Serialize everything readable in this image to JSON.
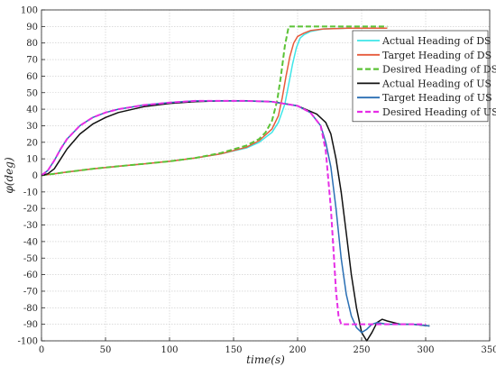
{
  "chart_data": {
    "type": "line",
    "xlabel": "time(s)",
    "ylabel": "φ(deg)",
    "xlim": [
      0,
      350
    ],
    "ylim": [
      -100,
      100
    ],
    "xticks": [
      0,
      50,
      100,
      150,
      200,
      250,
      300,
      350
    ],
    "yticks": [
      -100,
      -90,
      -80,
      -70,
      -60,
      -50,
      -40,
      -30,
      -20,
      -10,
      0,
      10,
      20,
      30,
      40,
      50,
      60,
      70,
      80,
      90,
      100
    ],
    "grid": true,
    "legend_position": "top-right",
    "series": [
      {
        "name": "Actual Heading of DS",
        "color": "#3EE6E8",
        "dash": "solid",
        "x": [
          0,
          10,
          20,
          40,
          60,
          80,
          100,
          120,
          140,
          160,
          170,
          180,
          185,
          190,
          193,
          196,
          199,
          202,
          205,
          210,
          220,
          240,
          260,
          270
        ],
        "y": [
          0,
          1,
          2,
          4,
          5.5,
          7,
          8.5,
          10.5,
          13,
          16.5,
          20,
          26,
          32,
          43,
          55,
          67,
          77,
          83,
          85,
          87,
          88.5,
          89,
          89,
          89
        ]
      },
      {
        "name": "Target Heading of DS",
        "color": "#E65A3C",
        "dash": "solid",
        "x": [
          0,
          10,
          20,
          40,
          60,
          80,
          100,
          120,
          140,
          160,
          170,
          180,
          185,
          188,
          191,
          194,
          197,
          200,
          205,
          210,
          220,
          240,
          260,
          270
        ],
        "y": [
          0,
          1,
          2,
          4,
          5.5,
          7,
          8.5,
          10.5,
          13,
          17,
          21,
          28,
          36,
          47,
          60,
          72,
          80,
          84,
          86,
          87.5,
          88.5,
          89,
          89,
          89
        ]
      },
      {
        "name": "Desired Heading of DS",
        "color": "#5BC236",
        "dash": "dashed",
        "x": [
          0,
          10,
          20,
          40,
          60,
          80,
          100,
          120,
          140,
          160,
          170,
          175,
          180,
          184,
          187,
          190,
          193,
          196,
          210,
          230,
          250,
          270
        ],
        "y": [
          0,
          1,
          2,
          4,
          5.5,
          7,
          8.5,
          10.5,
          13.5,
          18,
          22,
          26,
          33,
          45,
          60,
          78,
          90,
          90,
          90,
          90,
          90,
          90
        ]
      },
      {
        "name": "Actual Heading of US",
        "color": "#111111",
        "dash": "solid",
        "x": [
          0,
          5,
          10,
          15,
          20,
          30,
          40,
          50,
          60,
          80,
          100,
          120,
          140,
          160,
          180,
          200,
          215,
          222,
          226,
          230,
          234,
          238,
          242,
          246,
          250,
          254,
          258,
          262,
          266,
          270,
          280,
          290,
          303
        ],
        "y": [
          0,
          1,
          4,
          10,
          16,
          25,
          31,
          35,
          38,
          41.5,
          43.5,
          44.5,
          45,
          45,
          44.5,
          42,
          37,
          32,
          25,
          10,
          -10,
          -35,
          -60,
          -80,
          -95,
          -100,
          -95,
          -89,
          -87,
          -88,
          -90,
          -90,
          -91
        ]
      },
      {
        "name": "Target Heading of US",
        "color": "#2A6FB4",
        "dash": "solid",
        "x": [
          0,
          5,
          10,
          15,
          20,
          30,
          40,
          50,
          60,
          80,
          100,
          120,
          140,
          160,
          180,
          200,
          210,
          218,
          222,
          226,
          230,
          234,
          238,
          242,
          246,
          250,
          254,
          258,
          262,
          270,
          280,
          290,
          303
        ],
        "y": [
          0,
          3,
          9,
          16,
          22,
          30,
          35,
          38,
          40,
          42.5,
          44,
          45,
          45,
          45,
          44.5,
          42,
          38,
          30,
          20,
          5,
          -20,
          -50,
          -72,
          -85,
          -92,
          -95,
          -93,
          -90,
          -89,
          -90,
          -90,
          -90,
          -91
        ]
      },
      {
        "name": "Desired Heading of US",
        "color": "#E62EE6",
        "dash": "dashed",
        "x": [
          0,
          5,
          10,
          15,
          20,
          30,
          40,
          50,
          60,
          80,
          100,
          120,
          140,
          160,
          180,
          200,
          210,
          218,
          222,
          226,
          228,
          230,
          232,
          234,
          236,
          240,
          250,
          260,
          270,
          280,
          290,
          300
        ],
        "y": [
          0,
          3,
          9,
          16,
          22,
          30,
          35,
          38,
          40,
          42.5,
          44,
          45,
          45,
          45,
          44.5,
          42,
          38,
          30,
          15,
          -20,
          -45,
          -70,
          -85,
          -90,
          -90,
          -90,
          -90,
          -90,
          -90,
          -90,
          -90,
          -90
        ]
      }
    ]
  }
}
